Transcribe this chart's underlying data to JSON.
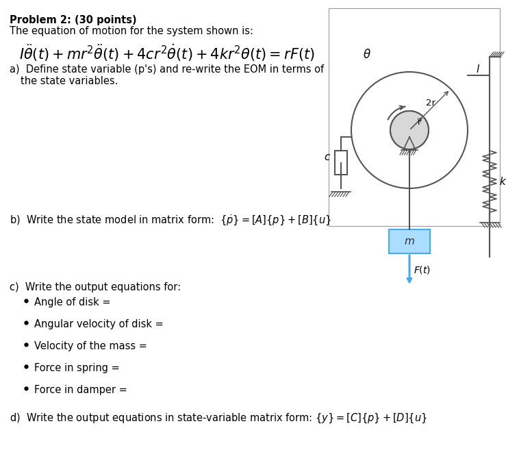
{
  "bg_color": "#ffffff",
  "text_color": "#000000",
  "title": "Problem 2: (30 points)",
  "subtitle": "The equation of motion for the system shown is:",
  "eom": "$I\\ddot{\\theta}(t) + mr^2\\ddot{\\theta}(t) + 4cr^2\\dot{\\theta}(t) + 4kr^2\\theta(t) = rF(t)$",
  "part_a_line1": "a)  Define state variable (p's) and re-write the EOM in terms of",
  "part_a_line2": "     the state variables.",
  "part_b": "b)  Write the state model in matrix form:  $\\{\\dot{p}\\} = [A]\\{p\\} + [B]\\{u\\}$",
  "part_c": "c)  Write the output equations for:",
  "bullets": [
    "Angle of disk =",
    "Angular velocity of disk =",
    "Velocity of the mass =",
    "Force in spring =",
    "Force in damper ="
  ],
  "part_d": "d)  Write the output equations in state-variable matrix form: $\\{y\\} = [C]\\{p\\} + [D]\\{u\\}$",
  "diagram_color": "#555555",
  "blue_color": "#44aaee",
  "mass_fill": "#aaddff",
  "mass_edge": "#44aaee"
}
